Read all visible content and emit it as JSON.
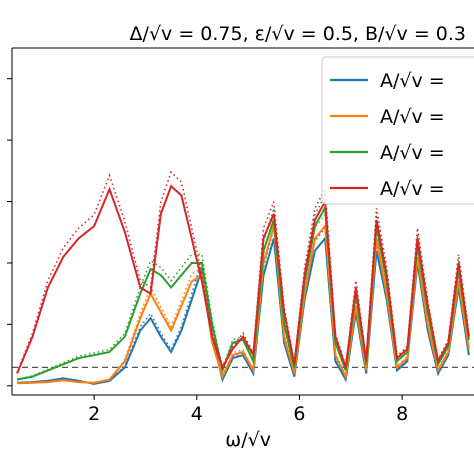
{
  "chart_data": {
    "type": "line",
    "title": "Δ/√v = 0.75, ε/√v = 0.5, B/√v = 0.3",
    "xlabel": "ω/√v",
    "ylabel": "",
    "xlim": [
      0.4,
      9.4
    ],
    "ylim": [
      -0.15,
      5.5
    ],
    "x_ticks": [
      2,
      4,
      6,
      8
    ],
    "x_tick_labels": [
      "2",
      "4",
      "6",
      "8"
    ],
    "y_ticks": [
      0,
      1,
      2,
      3,
      4,
      5
    ],
    "grid": false,
    "legend_position": "upper-right",
    "reference_line": {
      "y": 0.3,
      "style": "dashed",
      "color": "#555555"
    },
    "x": [
      0.5,
      0.8,
      1.1,
      1.4,
      1.7,
      2.0,
      2.3,
      2.6,
      2.9,
      3.1,
      3.3,
      3.5,
      3.7,
      3.9,
      4.1,
      4.3,
      4.5,
      4.7,
      4.9,
      5.1,
      5.3,
      5.5,
      5.7,
      5.9,
      6.1,
      6.3,
      6.5,
      6.7,
      6.9,
      7.1,
      7.3,
      7.5,
      7.7,
      7.9,
      8.1,
      8.3,
      8.5,
      8.7,
      8.9,
      9.1,
      9.3
    ],
    "series": [
      {
        "name": "A/√v =",
        "color": "#1f77b4",
        "values": [
          0.05,
          0.06,
          0.08,
          0.12,
          0.08,
          0.03,
          0.08,
          0.3,
          0.9,
          1.1,
          0.8,
          0.55,
          0.9,
          1.4,
          1.9,
          0.8,
          0.1,
          0.45,
          0.5,
          0.2,
          1.8,
          2.4,
          0.7,
          0.15,
          1.4,
          2.2,
          2.4,
          0.4,
          0.1,
          1.2,
          0.2,
          2.2,
          1.4,
          0.25,
          0.4,
          2.0,
          0.9,
          0.2,
          0.5,
          1.6,
          0.5
        ]
      },
      {
        "name": "A/√v =",
        "color": "#ff7f0e",
        "values": [
          0.04,
          0.05,
          0.06,
          0.09,
          0.06,
          0.05,
          0.1,
          0.4,
          1.1,
          1.5,
          1.2,
          0.9,
          1.3,
          1.7,
          1.8,
          0.7,
          0.15,
          0.5,
          0.55,
          0.25,
          2.0,
          2.6,
          0.8,
          0.2,
          1.5,
          2.4,
          2.6,
          0.5,
          0.15,
          1.3,
          0.25,
          2.4,
          1.5,
          0.3,
          0.45,
          2.1,
          1.0,
          0.25,
          0.55,
          1.7,
          0.6
        ]
      },
      {
        "name": "A/√v =",
        "color": "#2ca02c",
        "values": [
          0.1,
          0.15,
          0.25,
          0.35,
          0.45,
          0.5,
          0.55,
          0.8,
          1.5,
          1.9,
          1.8,
          1.6,
          1.8,
          2.0,
          2.0,
          1.0,
          0.25,
          0.7,
          0.75,
          0.4,
          2.2,
          2.7,
          1.0,
          0.3,
          1.7,
          2.6,
          2.9,
          0.7,
          0.25,
          1.5,
          0.35,
          2.6,
          1.7,
          0.4,
          0.55,
          2.3,
          1.2,
          0.35,
          0.65,
          1.9,
          0.75
        ]
      },
      {
        "name": "A/√v =",
        "color": "#d62728",
        "values": [
          0.2,
          0.8,
          1.6,
          2.1,
          2.4,
          2.6,
          3.2,
          2.5,
          1.6,
          1.5,
          2.8,
          3.25,
          3.1,
          2.4,
          1.7,
          0.8,
          0.3,
          0.6,
          0.8,
          0.5,
          2.4,
          2.8,
          1.2,
          0.35,
          1.8,
          2.7,
          3.0,
          0.8,
          0.3,
          1.6,
          0.4,
          2.7,
          1.8,
          0.45,
          0.6,
          2.4,
          1.3,
          0.4,
          0.7,
          2.0,
          0.8
        ]
      }
    ]
  }
}
